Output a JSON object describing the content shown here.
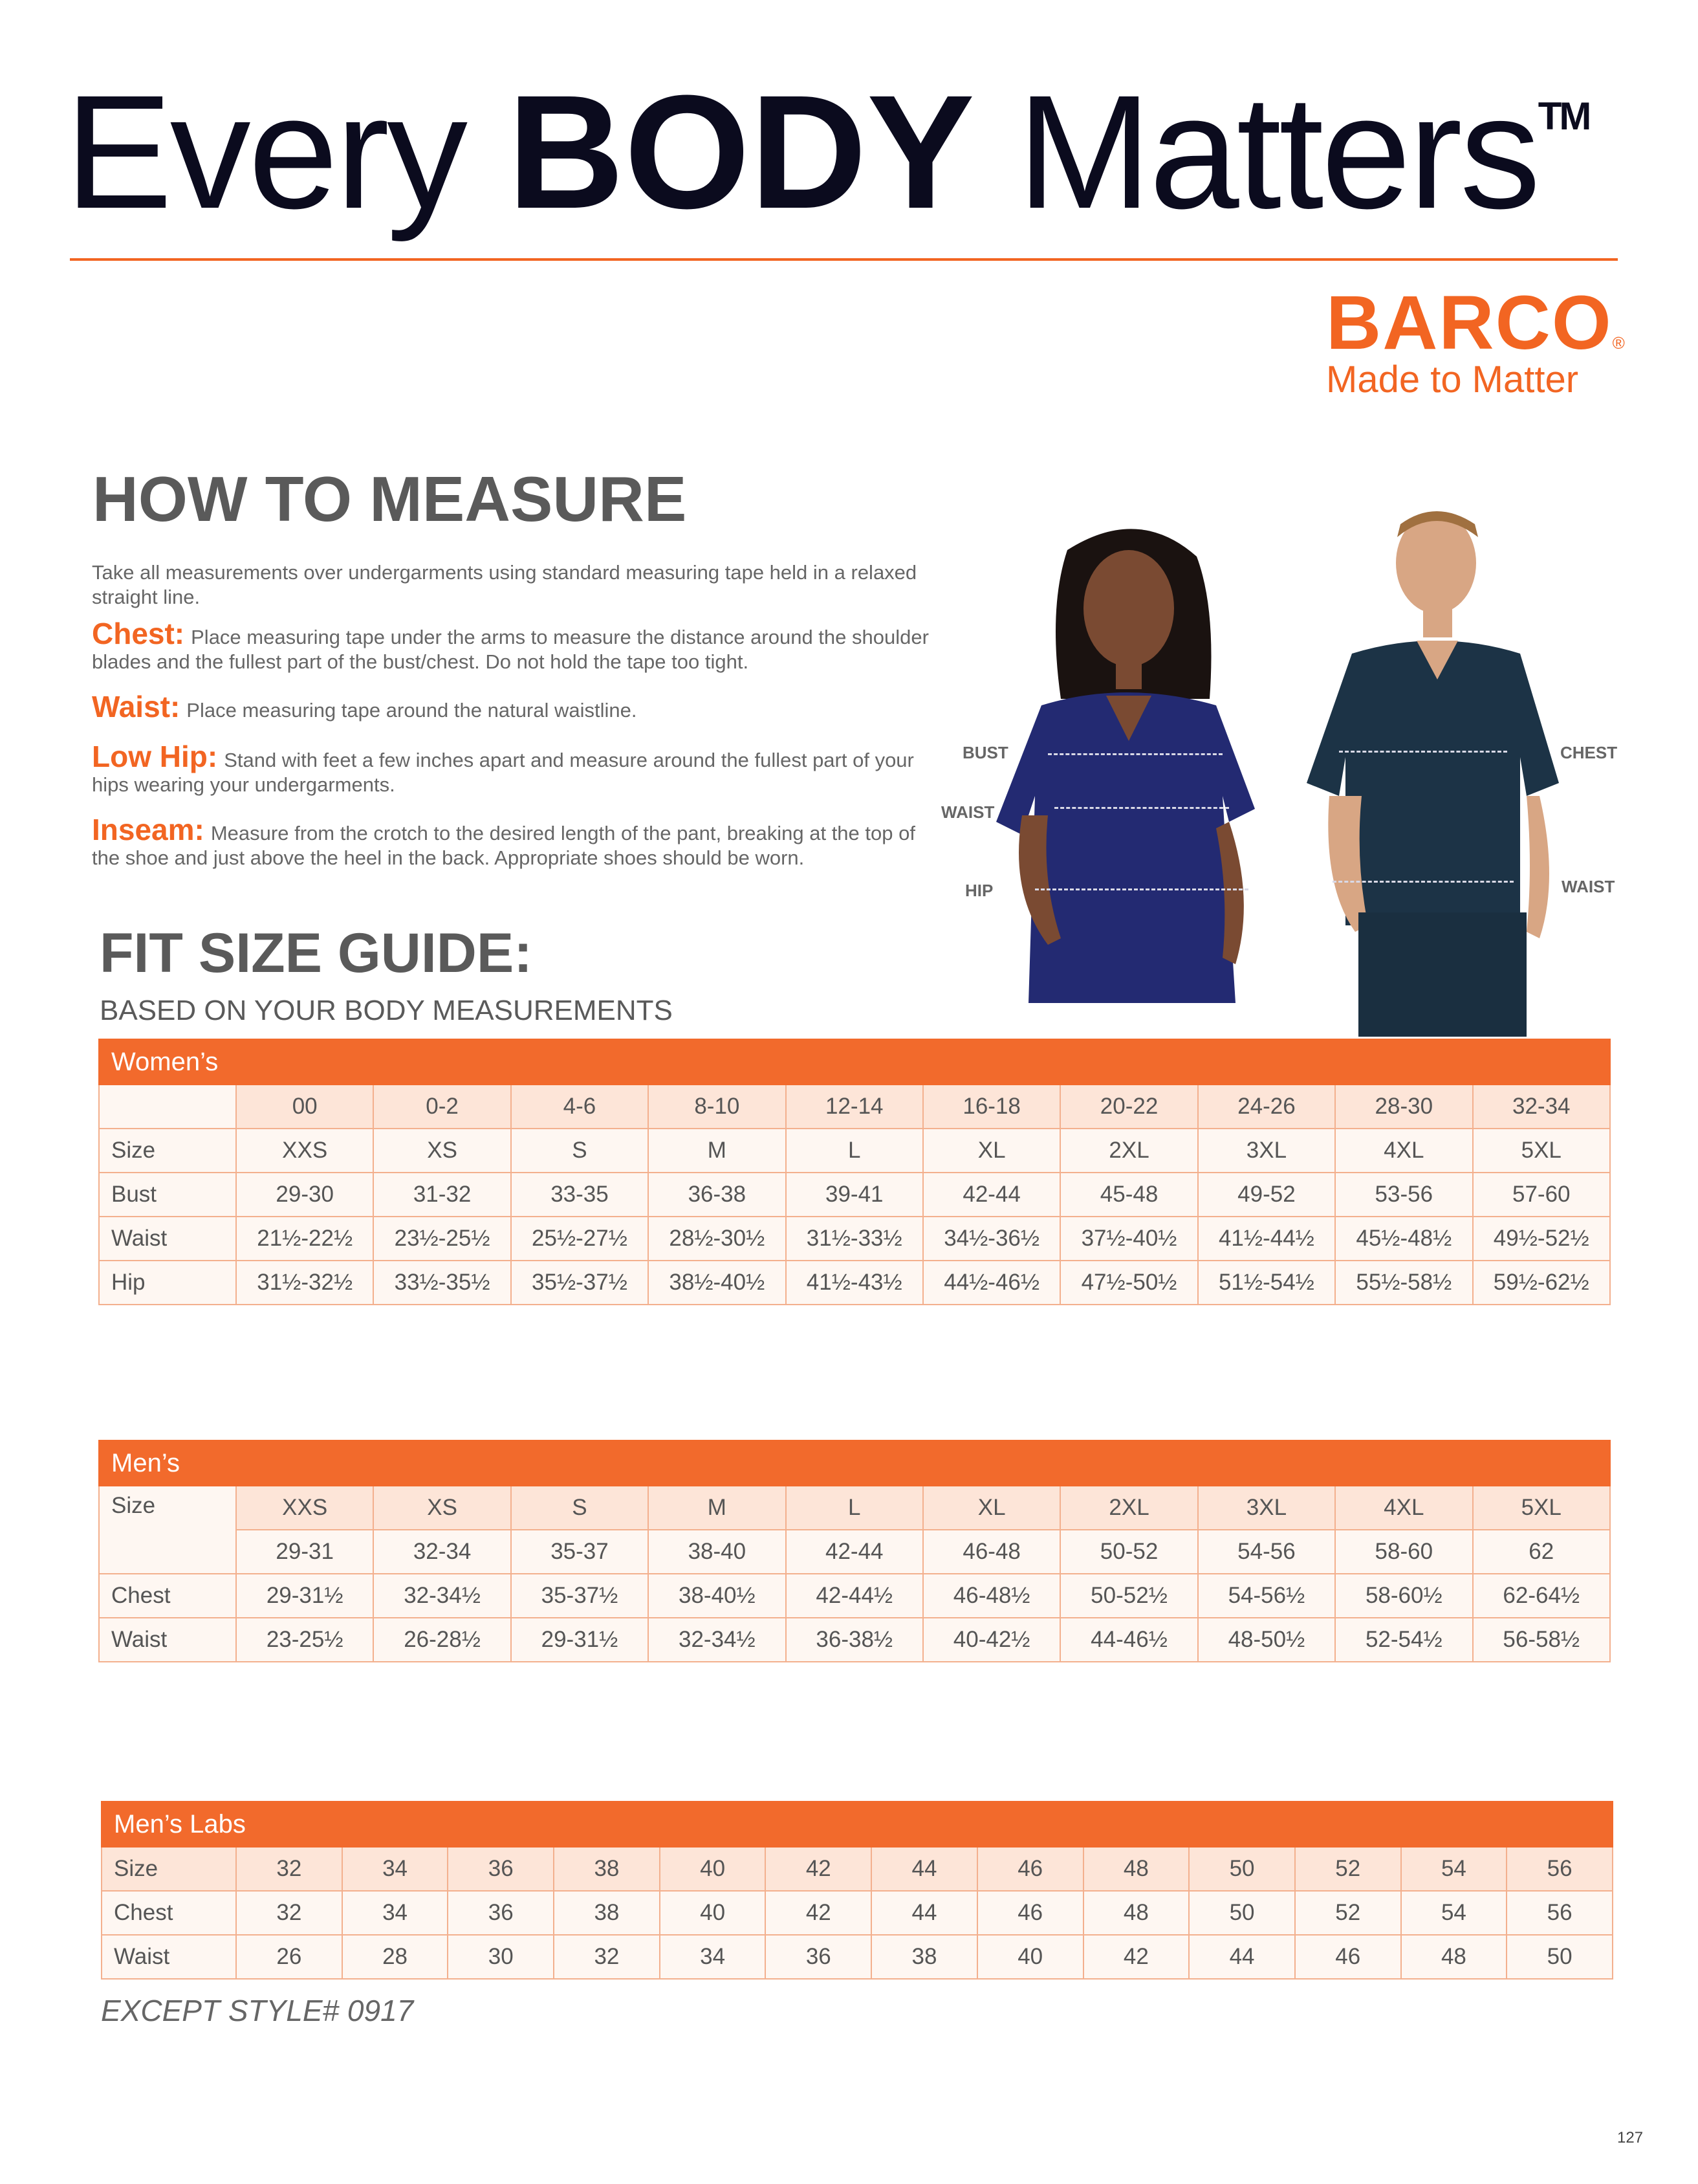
{
  "header": {
    "title_pre": "Every",
    "title_bold": "BODY",
    "title_post": "Matters",
    "trademark": "TM"
  },
  "brand": {
    "name": "BARCO",
    "registered": "®",
    "tagline": "Made to Matter",
    "accent": "#f26522"
  },
  "how_to": {
    "heading": "HOW TO MEASURE",
    "intro": "Take all measurements over undergarments using standard measuring tape held in a relaxed straight line.",
    "items": [
      {
        "key": "Chest:",
        "text": "Place measuring tape under the arms to measure the distance around the shoulder blades and the fullest part of the bust/chest. Do not hold the tape too tight."
      },
      {
        "key": "Waist:",
        "text": "Place measuring tape around the natural waistline."
      },
      {
        "key": "Low Hip:",
        "text": "Stand with feet a few inches apart and measure around the fullest part of your hips wearing your undergarments."
      },
      {
        "key": "Inseam:",
        "text": "Measure from the crotch to the desired length of the pant, breaking at the top of the shoe and just above the heel in the back. Appropriate shoes should be worn."
      }
    ]
  },
  "figure_labels": {
    "bust": "BUST",
    "waist_w": "WAIST",
    "hip": "HIP",
    "chest": "CHEST",
    "waist_m": "WAIST"
  },
  "fit": {
    "heading": "FIT SIZE GUIDE:",
    "subheading": "BASED ON YOUR BODY MEASUREMENTS"
  },
  "tables": {
    "womens": {
      "title": "Women’s",
      "rows": [
        {
          "label": "",
          "cells": [
            "00",
            "0-2",
            "4-6",
            "8-10",
            "12-14",
            "16-18",
            "20-22",
            "24-26",
            "28-30",
            "32-34"
          ]
        },
        {
          "label": "Size",
          "cells": [
            "XXS",
            "XS",
            "S",
            "M",
            "L",
            "XL",
            "2XL",
            "3XL",
            "4XL",
            "5XL"
          ]
        },
        {
          "label": "Bust",
          "cells": [
            "29-30",
            "31-32",
            "33-35",
            "36-38",
            "39-41",
            "42-44",
            "45-48",
            "49-52",
            "53-56",
            "57-60"
          ]
        },
        {
          "label": "Waist",
          "cells": [
            "21½-22½",
            "23½-25½",
            "25½-27½",
            "28½-30½",
            "31½-33½",
            "34½-36½",
            "37½-40½",
            "41½-44½",
            "45½-48½",
            "49½-52½"
          ]
        },
        {
          "label": "Hip",
          "cells": [
            "31½-32½",
            "33½-35½",
            "35½-37½",
            "38½-40½",
            "41½-43½",
            "44½-46½",
            "47½-50½",
            "51½-54½",
            "55½-58½",
            "59½-62½"
          ]
        }
      ]
    },
    "mens": {
      "title": "Men’s",
      "rows": [
        {
          "label": "Size",
          "cells": [
            "XXS",
            "XS",
            "S",
            "M",
            "L",
            "XL",
            "2XL",
            "3XL",
            "4XL",
            "5XL"
          ]
        },
        {
          "label": "",
          "cells": [
            "29-31",
            "32-34",
            "35-37",
            "38-40",
            "42-44",
            "46-48",
            "50-52",
            "54-56",
            "58-60",
            "62"
          ]
        },
        {
          "label": "Chest",
          "cells": [
            "29-31½",
            "32-34½",
            "35-37½",
            "38-40½",
            "42-44½",
            "46-48½",
            "50-52½",
            "54-56½",
            "58-60½",
            "62-64½"
          ]
        },
        {
          "label": "Waist",
          "cells": [
            "23-25½",
            "26-28½",
            "29-31½",
            "32-34½",
            "36-38½",
            "40-42½",
            "44-46½",
            "48-50½",
            "52-54½",
            "56-58½"
          ]
        }
      ]
    },
    "mens_labs": {
      "title": "Men’s Labs",
      "rows": [
        {
          "label": "Size",
          "cells": [
            "32",
            "34",
            "36",
            "38",
            "40",
            "42",
            "44",
            "46",
            "48",
            "50",
            "52",
            "54",
            "56"
          ]
        },
        {
          "label": "Chest",
          "cells": [
            "32",
            "34",
            "36",
            "38",
            "40",
            "42",
            "44",
            "46",
            "48",
            "50",
            "52",
            "54",
            "56"
          ]
        },
        {
          "label": "Waist",
          "cells": [
            "26",
            "28",
            "30",
            "32",
            "34",
            "36",
            "38",
            "40",
            "42",
            "44",
            "46",
            "48",
            "50"
          ]
        }
      ]
    }
  },
  "footnote": "EXCEPT STYLE# 0917",
  "page_number": "127"
}
